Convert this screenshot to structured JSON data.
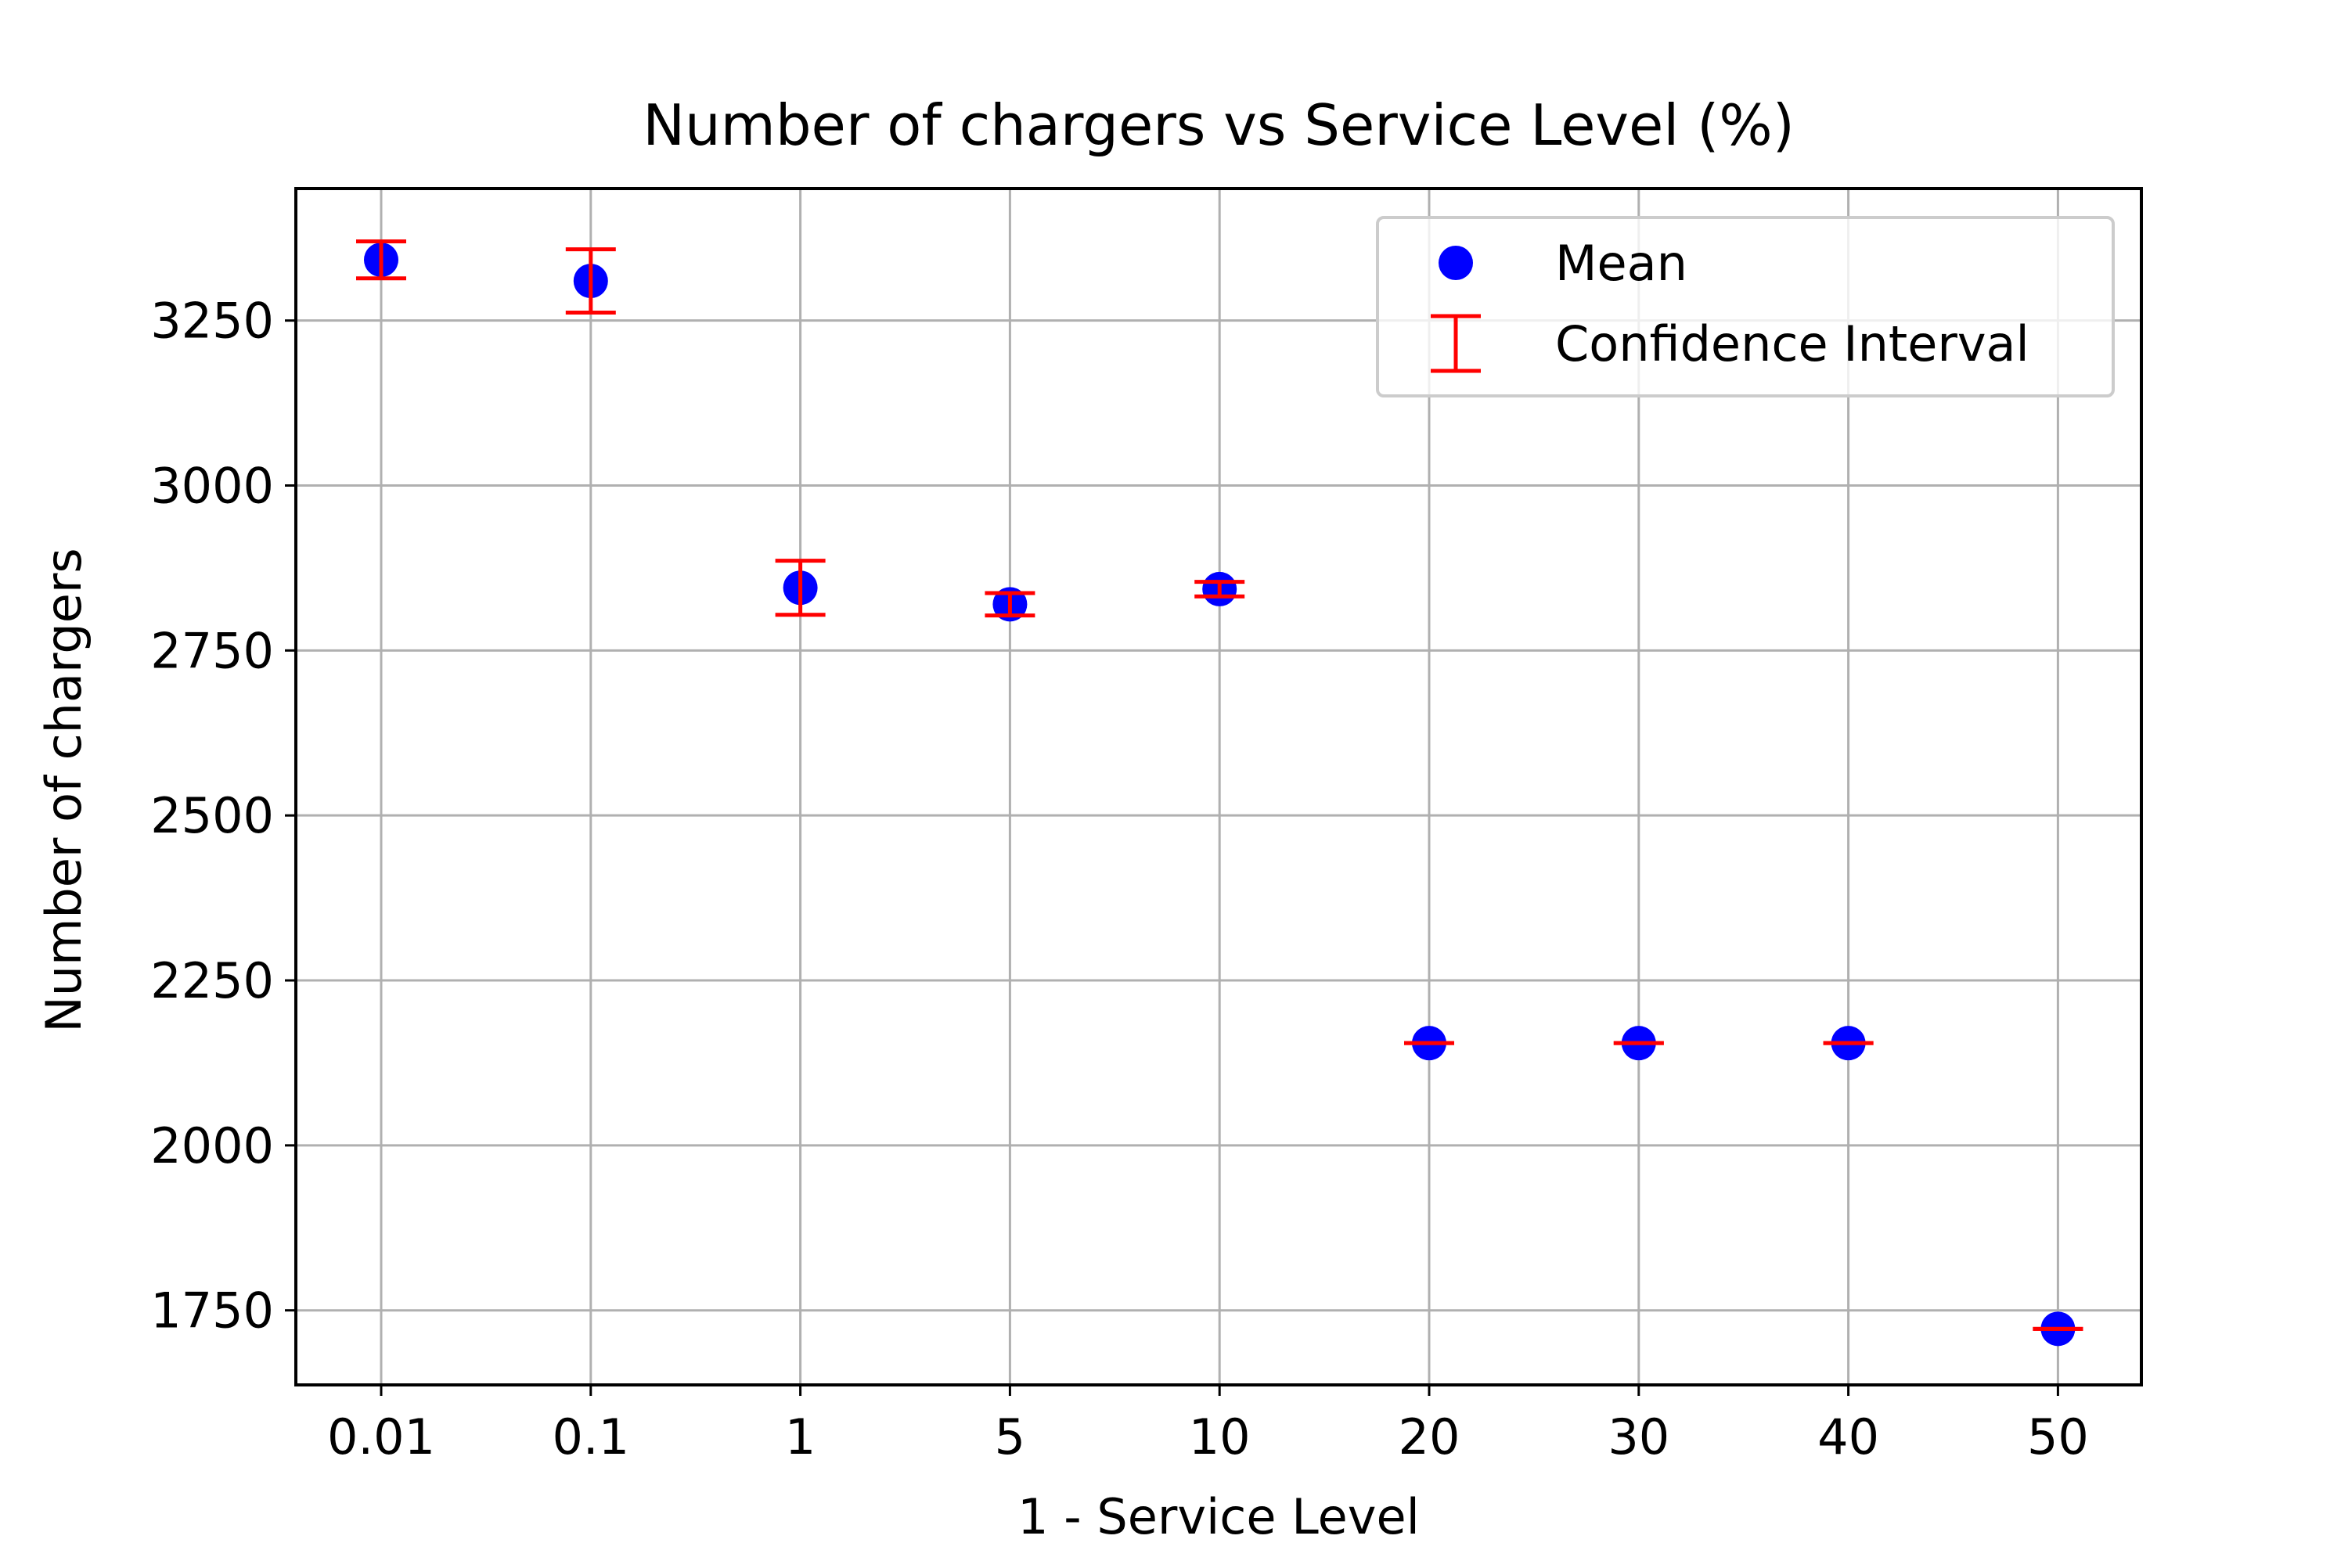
{
  "chart_data": {
    "type": "scatter",
    "title": "Number of chargers vs Service Level (%)",
    "xlabel": "1 - Service Level",
    "ylabel": "Number of chargers",
    "categories": [
      "0.01",
      "0.1",
      "1",
      "5",
      "10",
      "20",
      "30",
      "40",
      "50"
    ],
    "series": [
      {
        "name": "Mean",
        "marker": "circle",
        "color": "#0000ff",
        "values": [
          3342,
          3310,
          2845,
          2820,
          2843,
          2155,
          2155,
          2155,
          1722
        ]
      },
      {
        "name": "Confidence Interval",
        "marker": "errorbar",
        "color": "#ff0000",
        "lower": [
          3314,
          3262,
          2804,
          2803,
          2832,
          2155,
          2155,
          2155,
          1722
        ],
        "upper": [
          3370,
          3358,
          2886,
          2837,
          2854,
          2155,
          2155,
          2155,
          1722
        ]
      }
    ],
    "ylim": [
      1637,
      3450
    ],
    "yticks": [
      1750,
      2000,
      2250,
      2500,
      2750,
      3000,
      3250
    ],
    "grid": true,
    "legend_position": "top-right",
    "colors": {
      "grid": "#b0b0b0",
      "axes": "#000000",
      "legend_border": "#cccccc"
    }
  }
}
